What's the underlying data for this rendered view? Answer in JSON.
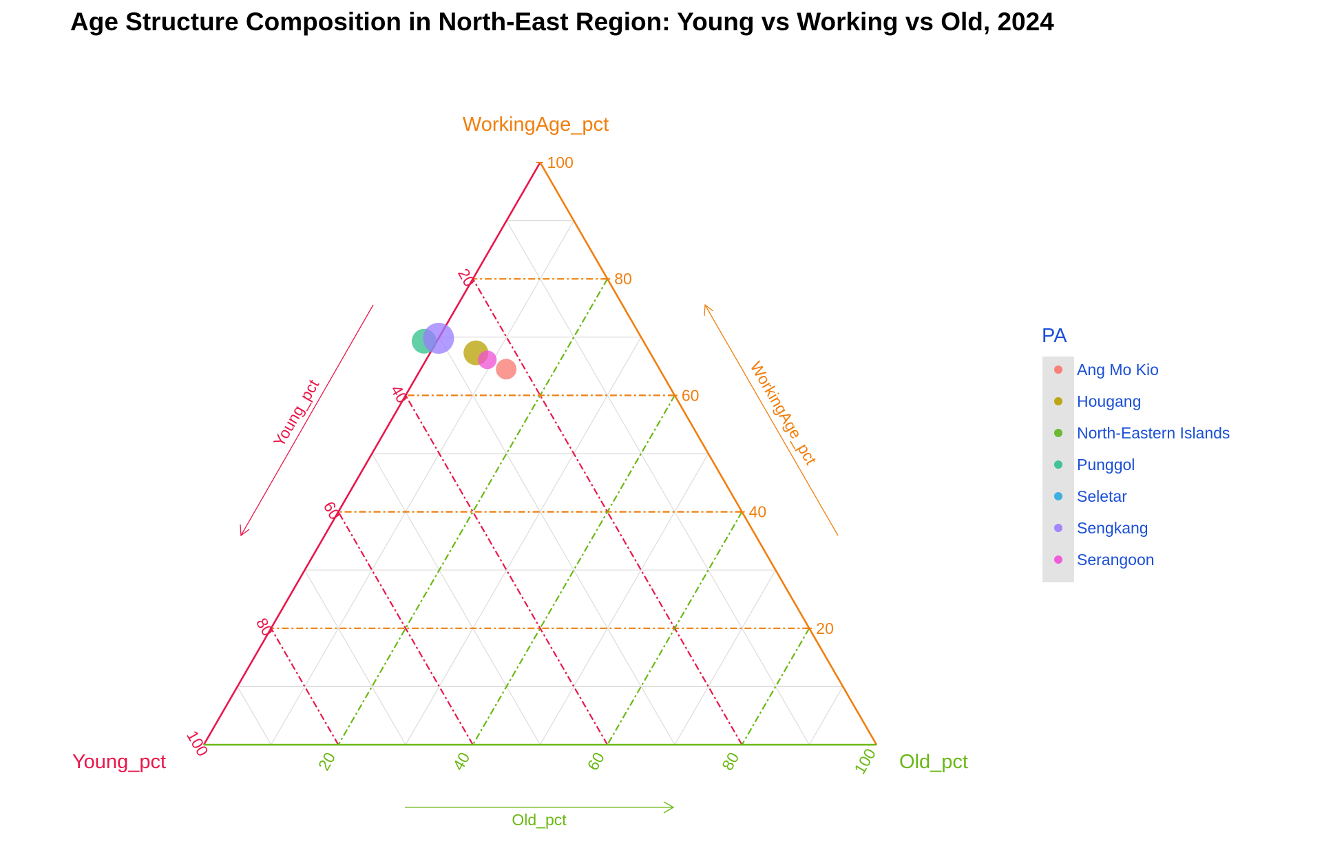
{
  "chart_data": {
    "type": "ternary",
    "title": "Age Structure Composition in North-East Region: Young vs Working vs Old, 2024",
    "axes": {
      "left": {
        "name": "Young_pct",
        "color": "#e8174a"
      },
      "top": {
        "name": "WorkingAge_pct",
        "color": "#f07f0e"
      },
      "right": {
        "name": "Old_pct",
        "color": "#6ab814"
      }
    },
    "ticks": [
      20,
      40,
      60,
      80,
      100
    ],
    "range": [
      0,
      100
    ],
    "grid": true,
    "legend": {
      "title": "PA",
      "placement": "right",
      "entries": [
        {
          "name": "Ang Mo Kio",
          "color": "#f8766d"
        },
        {
          "name": "Hougang",
          "color": "#b79f00"
        },
        {
          "name": "North-Eastern Islands",
          "color": "#5fb321"
        },
        {
          "name": "Punggol",
          "color": "#2fbf8a"
        },
        {
          "name": "Seletar",
          "color": "#2aa8e0"
        },
        {
          "name": "Sengkang",
          "color": "#9a7bff"
        },
        {
          "name": "Serangoon",
          "color": "#f04fd6"
        }
      ]
    },
    "points": [
      {
        "pa": "Ang Mo Kio",
        "young": 22.8,
        "working": 64.5,
        "old": 12.7,
        "size": 1.0
      },
      {
        "pa": "Hougang",
        "young": 25.9,
        "working": 67.3,
        "old": 6.8,
        "size": 1.2
      },
      {
        "pa": "Serangoon",
        "young": 24.8,
        "working": 66.1,
        "old": 9.1,
        "size": 0.9
      },
      {
        "pa": "Punggol",
        "young": 32.6,
        "working": 69.3,
        "old": -1.9,
        "size": 1.2
      },
      {
        "pa": "Sengkang",
        "young": 30.2,
        "working": 69.8,
        "old": 0.0,
        "size": 1.5
      }
    ]
  }
}
